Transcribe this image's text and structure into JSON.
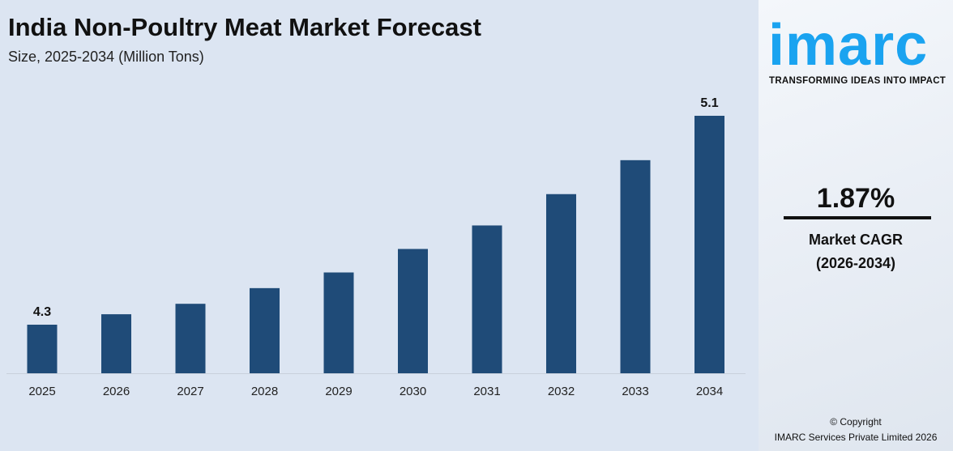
{
  "header": {
    "title": "India Non-Poultry Meat Market Forecast",
    "subtitle": "Size, 2025-2034 (Million Tons)"
  },
  "chart_data": {
    "type": "bar",
    "title": "India Non-Poultry Meat Market Forecast",
    "subtitle": "Size, 2025-2034 (Million Tons)",
    "xlabel": "",
    "ylabel": "Million Tons",
    "categories": [
      "2025",
      "2026",
      "2027",
      "2028",
      "2029",
      "2030",
      "2031",
      "2032",
      "2033",
      "2034"
    ],
    "values": [
      4.3,
      4.34,
      4.38,
      4.44,
      4.5,
      4.59,
      4.68,
      4.8,
      4.93,
      5.1
    ],
    "data_labels": {
      "0": "4.3",
      "9": "5.1"
    },
    "bar_color": "#1f4b78",
    "grid": false
  },
  "sidebar": {
    "logo": "imarc",
    "tagline": "TRANSFORMING IDEAS INTO IMPACT",
    "cagr": "1.87%",
    "cagr_label": "Market CAGR",
    "cagr_period": "(2026-2034)",
    "copyright": "© Copyright",
    "company": "IMARC Services Private Limited 2026",
    "brand_color": "#1aa3f0"
  }
}
